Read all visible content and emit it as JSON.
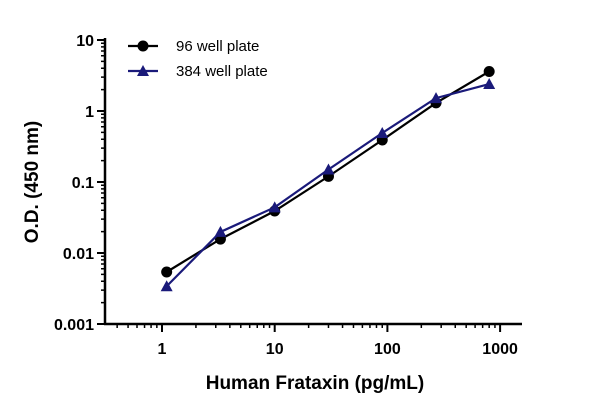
{
  "chart_data": {
    "type": "line",
    "title": "",
    "xlabel": "Human Frataxin (pg/mL)",
    "ylabel": "O.D. (450 nm)",
    "xscale": "log",
    "yscale": "log",
    "xlim": [
      0.3,
      2000
    ],
    "ylim": [
      0.001,
      10
    ],
    "xticks": [
      1,
      10,
      100,
      1000
    ],
    "xtick_labels": [
      "1",
      "10",
      "100",
      "1000"
    ],
    "yticks": [
      0.001,
      0.01,
      0.1,
      1,
      10
    ],
    "ytick_labels": [
      "0.001",
      "0.01",
      "0.1",
      "1",
      "10"
    ],
    "grid": false,
    "legend_position": "top-left",
    "series": [
      {
        "name": "96 well plate",
        "marker": "circle",
        "color": "#000000",
        "x": [
          1.1,
          3.3,
          10,
          30,
          90,
          270,
          800
        ],
        "y": [
          0.0054,
          0.0157,
          0.039,
          0.12,
          0.39,
          1.3,
          3.6
        ]
      },
      {
        "name": "384 well plate",
        "marker": "triangle",
        "color": "#1a1a7a",
        "x": [
          1.1,
          3.3,
          10,
          30,
          90,
          270,
          800
        ],
        "y": [
          0.0034,
          0.0198,
          0.044,
          0.15,
          0.49,
          1.52,
          2.4
        ]
      }
    ]
  }
}
